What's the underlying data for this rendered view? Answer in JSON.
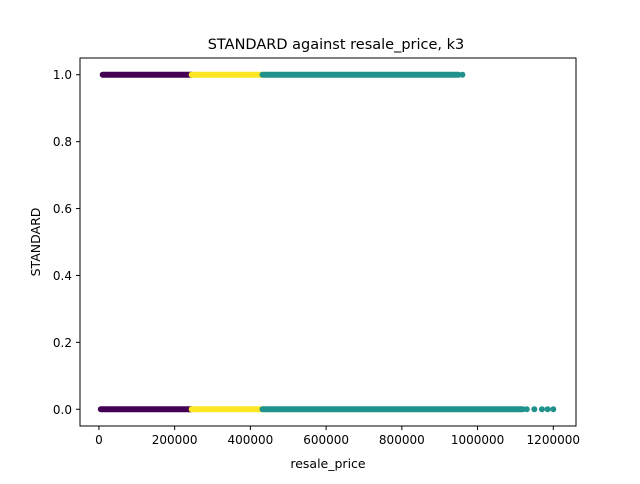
{
  "chart_data": {
    "type": "scatter",
    "title": "STANDARD against resale_price, k3",
    "xlabel": "resale_price",
    "ylabel": "STANDARD",
    "xlim": [
      -50000,
      1260000
    ],
    "ylim": [
      -0.05,
      1.05
    ],
    "x_ticks": [
      0,
      200000,
      400000,
      600000,
      800000,
      1000000,
      1200000
    ],
    "x_tick_labels": [
      "0",
      "200000",
      "400000",
      "600000",
      "800000",
      "1000000",
      "1200000"
    ],
    "y_ticks": [
      0.0,
      0.2,
      0.4,
      0.6,
      0.8,
      1.0
    ],
    "y_tick_labels": [
      "0.0",
      "0.2",
      "0.4",
      "0.6",
      "0.8",
      "1.0"
    ],
    "grid": false,
    "legend": "none",
    "series": [
      {
        "color": "#440154",
        "segments": [
          {
            "y": 1,
            "x_min": 10000,
            "x_max": 245000
          },
          {
            "y": 0,
            "x_min": 5000,
            "x_max": 245000
          }
        ]
      },
      {
        "color": "#fde725",
        "segments": [
          {
            "y": 1,
            "x_min": 245000,
            "x_max": 432000
          },
          {
            "y": 0,
            "x_min": 245000,
            "x_max": 432000
          }
        ]
      },
      {
        "color": "#21918c",
        "segments": [
          {
            "y": 1,
            "x_min": 432000,
            "x_max": 950000
          },
          {
            "y": 0,
            "x_min": 432000,
            "x_max": 1120000
          }
        ],
        "outliers": [
          {
            "x": 960000,
            "y": 1
          },
          {
            "x": 1130000,
            "y": 0
          },
          {
            "x": 1150000,
            "y": 0
          },
          {
            "x": 1170000,
            "y": 0
          },
          {
            "x": 1185000,
            "y": 0
          },
          {
            "x": 1200000,
            "y": 0
          }
        ]
      }
    ]
  }
}
